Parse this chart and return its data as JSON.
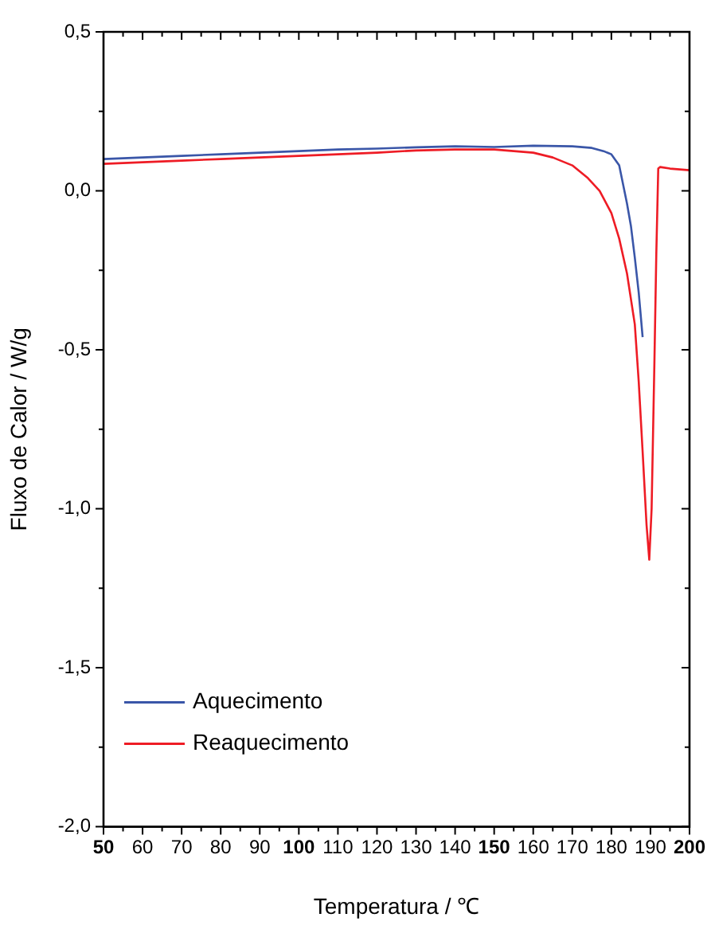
{
  "chart_data": {
    "type": "line",
    "xlabel": "Temperatura / ℃",
    "ylabel": "Fluxo de Calor / W/g",
    "legend": "bottom left",
    "grid": false,
    "marker": "none",
    "line_style": "solid",
    "xlim": [
      50,
      200
    ],
    "ylim": [
      -2.0,
      0.5
    ],
    "xticks": [
      50,
      {
        "value": 55,
        "label": null
      },
      60,
      {
        "value": 65,
        "label": null
      },
      70,
      {
        "value": 75,
        "label": null
      },
      80,
      {
        "value": 85,
        "label": null
      },
      90,
      {
        "value": 95,
        "label": null
      },
      100,
      {
        "value": 105,
        "label": null
      },
      110,
      {
        "value": 115,
        "label": null
      },
      120,
      {
        "value": 125,
        "label": null
      },
      130,
      {
        "value": 135,
        "label": null
      },
      140,
      {
        "value": 145,
        "label": null
      },
      150,
      {
        "value": 155,
        "label": null
      },
      160,
      {
        "value": 165,
        "label": null
      },
      170,
      {
        "value": 175,
        "label": null
      },
      180,
      {
        "value": 185,
        "label": null
      },
      190,
      {
        "value": 195,
        "label": null
      },
      200
    ],
    "yticks": [
      {
        "value": -2.0,
        "label": "-2,0"
      },
      {
        "value": -1.75,
        "label": null
      },
      {
        "value": -1.5,
        "label": "-1,5"
      },
      {
        "value": -1.25,
        "label": null
      },
      {
        "value": -1.0,
        "label": "-1,0"
      },
      {
        "value": -0.75,
        "label": null
      },
      {
        "value": -0.5,
        "label": "-0,5"
      },
      {
        "value": -0.25,
        "label": null
      },
      {
        "value": 0.0,
        "label": "0,0"
      },
      {
        "value": 0.25,
        "label": null
      },
      {
        "value": 0.5,
        "label": "0,5"
      }
    ],
    "series": [
      {
        "name": "Aquecimento",
        "color": "#3a56a8",
        "x": [
          50,
          60,
          70,
          80,
          90,
          100,
          110,
          120,
          130,
          140,
          150,
          160,
          170,
          175,
          178,
          180,
          182,
          184,
          185,
          186,
          187,
          188
        ],
        "values": [
          0.1,
          0.105,
          0.11,
          0.115,
          0.12,
          0.125,
          0.13,
          0.133,
          0.137,
          0.14,
          0.138,
          0.142,
          0.14,
          0.135,
          0.125,
          0.115,
          0.08,
          -0.04,
          -0.11,
          -0.21,
          -0.32,
          -0.46
        ]
      },
      {
        "name": "Reaquecimento",
        "color": "#ee1c25",
        "x": [
          50,
          60,
          70,
          80,
          90,
          100,
          110,
          120,
          130,
          140,
          150,
          160,
          165,
          170,
          174,
          177,
          180,
          182,
          184,
          186,
          187,
          188,
          189,
          189.7,
          190.3,
          191,
          191.5,
          192,
          192.5,
          195,
          200
        ],
        "values": [
          0.085,
          0.09,
          0.095,
          0.1,
          0.105,
          0.11,
          0.115,
          0.12,
          0.127,
          0.13,
          0.13,
          0.12,
          0.105,
          0.08,
          0.04,
          0.0,
          -0.07,
          -0.15,
          -0.26,
          -0.42,
          -0.6,
          -0.82,
          -1.05,
          -1.16,
          -1.0,
          -0.55,
          -0.2,
          0.07,
          0.075,
          0.07,
          0.065
        ]
      }
    ]
  }
}
